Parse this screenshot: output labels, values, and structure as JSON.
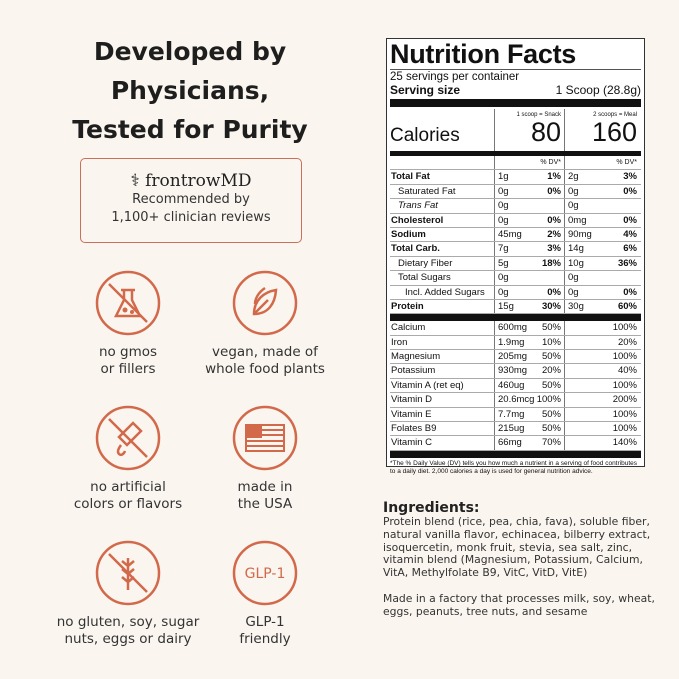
{
  "headline": [
    "Developed by",
    "Physicians,",
    "Tested for Purity"
  ],
  "badge": {
    "brand": "frontrowMD",
    "line1": "Recommended by",
    "line2": "1,100+ clinician reviews"
  },
  "accent": "#d2694a",
  "features": [
    {
      "icon": "no-flask-icon",
      "l1": "no gmos",
      "l2": "or fillers"
    },
    {
      "icon": "leaf-icon",
      "l1": "vegan, made of",
      "l2": "whole food plants"
    },
    {
      "icon": "no-dropper-icon",
      "l1": "no artificial",
      "l2": "colors or flavors"
    },
    {
      "icon": "usa-flag-icon",
      "l1": "made in",
      "l2": "the USA"
    },
    {
      "icon": "no-wheat-icon",
      "l1": "no gluten, soy, sugar",
      "l2": "nuts, eggs or dairy"
    },
    {
      "icon": "glp1-icon",
      "text": "GLP-1",
      "l1": "GLP-1",
      "l2": "friendly"
    }
  ],
  "nutrition": {
    "title": "Nutrition Facts",
    "servings": "25 servings per container",
    "serving_label": "Serving size",
    "serving_value": "1 Scoop (28.8g)",
    "calories_label": "Calories",
    "col1_head": "1 scoop = Snack",
    "col1_cal": "80",
    "col2_head": "2 scoops = Meal",
    "col2_cal": "160",
    "dv_head": "% DV*",
    "rows": [
      {
        "n": "Total Fat",
        "b": true,
        "a1": "1g",
        "d1": "1%",
        "a2": "2g",
        "d2": "3%"
      },
      {
        "n": "Saturated Fat",
        "i": 1,
        "a1": "0g",
        "d1": "0%",
        "a2": "0g",
        "d2": "0%"
      },
      {
        "n": "Trans Fat",
        "i": 1,
        "a1": "0g",
        "d1": "",
        "a2": "0g",
        "d2": ""
      },
      {
        "n": "Cholesterol",
        "b": true,
        "a1": "0g",
        "d1": "0%",
        "a2": "0mg",
        "d2": "0%"
      },
      {
        "n": "Sodium",
        "b": true,
        "a1": "45mg",
        "d1": "2%",
        "a2": "90mg",
        "d2": "4%"
      },
      {
        "n": "Total Carb.",
        "b": true,
        "a1": "7g",
        "d1": "3%",
        "a2": "14g",
        "d2": "6%"
      },
      {
        "n": "Dietary Fiber",
        "i": 1,
        "a1": "5g",
        "d1": "18%",
        "a2": "10g",
        "d2": "36%"
      },
      {
        "n": "Total Sugars",
        "i": 1,
        "a1": "0g",
        "d1": "",
        "a2": "0g",
        "d2": ""
      },
      {
        "n": "Incl. Added Sugars",
        "i": 2,
        "a1": "0g",
        "d1": "0%",
        "a2": "0g",
        "d2": "0%"
      },
      {
        "n": "Protein",
        "b": true,
        "a1": "15g",
        "d1": "30%",
        "a2": "30g",
        "d2": "60%"
      }
    ],
    "vitamins": [
      {
        "n": "Calcium",
        "a1": "600mg",
        "d1": "50%",
        "d2": "100%"
      },
      {
        "n": "Iron",
        "a1": "1.9mg",
        "d1": "10%",
        "d2": "20%"
      },
      {
        "n": "Magnesium",
        "a1": "205mg",
        "d1": "50%",
        "d2": "100%"
      },
      {
        "n": "Potassium",
        "a1": "930mg",
        "d1": "20%",
        "d2": "40%"
      },
      {
        "n": "Vitamin A (ret eq)",
        "a1": "460ug",
        "d1": "50%",
        "d2": "100%"
      },
      {
        "n": "Vitamin D",
        "a1": "20.6mcg",
        "d1": "100%",
        "d2": "200%"
      },
      {
        "n": "Vitamin E",
        "a1": "7.7mg",
        "d1": "50%",
        "d2": "100%"
      },
      {
        "n": "Folates B9",
        "a1": "215ug",
        "d1": "50%",
        "d2": "100%"
      },
      {
        "n": "Vitamin C",
        "a1": "66mg",
        "d1": "70%",
        "d2": "140%"
      }
    ],
    "footnote": "*The % Daily Value (DV) tells you how much a nutrient in a serving of food contributes to a daily diet. 2,000 calories a day is used for general nutrition advice."
  },
  "ingredients": {
    "title": "Ingredients:",
    "text": "Protein blend (rice, pea, chia, fava), soluble fiber, natural vanilla flavor, echinacea, bilberry extract, isoquercetin, monk fruit, stevia, sea salt, zinc, vitamin blend (Magnesium, Potassium, Calcium, VitA, Methylfolate B9, VitC, VitD, VitE)",
    "allergen": "Made in a factory that processes milk, soy, wheat, eggs, peanuts, tree nuts, and sesame"
  }
}
